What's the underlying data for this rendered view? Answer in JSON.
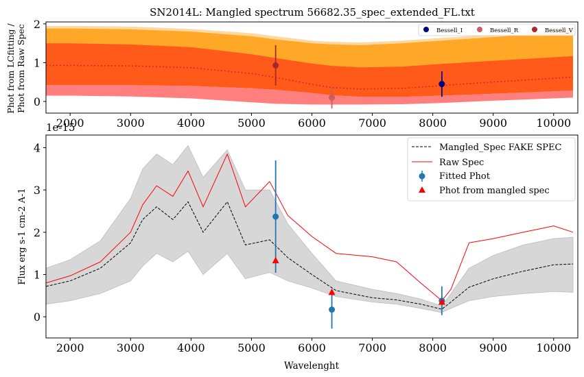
{
  "chart_data": [
    {
      "type": "line",
      "title": "SN2014L: Mangled spectrum 56682.35_spec_extended_FL.txt",
      "ylabel_line1": "Phot from LCfitting /",
      "ylabel_line2": "Phot from Raw Spec",
      "offset_text": "1e-15",
      "xlim": [
        1600,
        10400
      ],
      "ylim": [
        -0.3,
        2.05
      ],
      "x_ticks": [
        2000,
        3000,
        4000,
        5000,
        6000,
        7000,
        8000,
        9000,
        10000
      ],
      "y_ticks": [
        0,
        1,
        2
      ],
      "x": [
        1600,
        2000,
        3000,
        4000,
        5000,
        5400,
        6000,
        6330,
        6800,
        7500,
        8150,
        9000,
        10000,
        10320
      ],
      "ratio_curve": [
        0.93,
        0.93,
        0.92,
        0.87,
        0.72,
        0.62,
        0.44,
        0.36,
        0.32,
        0.34,
        0.41,
        0.5,
        0.6,
        0.63
      ],
      "band_outer_upper": [
        1.95,
        1.95,
        1.93,
        1.87,
        1.76,
        1.68,
        1.57,
        1.54,
        1.52,
        1.57,
        1.64,
        1.73,
        1.83,
        1.85
      ],
      "band_orange_upper": [
        1.88,
        1.88,
        1.86,
        1.8,
        1.68,
        1.6,
        1.5,
        1.47,
        1.45,
        1.5,
        1.57,
        1.66,
        1.77,
        1.78
      ],
      "band_orange_lower": [
        0.15,
        0.15,
        0.13,
        0.08,
        -0.02,
        -0.06,
        -0.08,
        -0.08,
        -0.08,
        -0.07,
        -0.04,
        0.02,
        0.08,
        0.1
      ],
      "band_red_upper": [
        1.5,
        1.5,
        1.47,
        1.4,
        1.22,
        1.12,
        0.98,
        0.92,
        0.88,
        0.9,
        0.97,
        1.05,
        1.14,
        1.17
      ],
      "band_red_lower": [
        0.42,
        0.42,
        0.42,
        0.4,
        0.34,
        0.3,
        0.22,
        0.16,
        0.12,
        0.12,
        0.15,
        0.2,
        0.26,
        0.28
      ],
      "points": [
        {
          "name": "Bessell_I",
          "x": 8150,
          "y": 0.45,
          "yerr": 0.33,
          "color": "#000080"
        },
        {
          "name": "Bessell_R",
          "x": 6330,
          "y": 0.1,
          "yerr": 0.28,
          "color": "#cd5c5c"
        },
        {
          "name": "Bessell_V",
          "x": 5400,
          "y": 0.93,
          "yerr": 0.52,
          "color": "#a52a2a"
        }
      ],
      "legend_position": "upper-right",
      "colors": {
        "ratio_line": "#d62728",
        "outer_band": "#ffd8a0",
        "orange_band": "#ffa726",
        "red_band": "#ff5a1a",
        "lower_band": "#ff7f7f"
      }
    },
    {
      "type": "line",
      "xlabel": "Wavelenght",
      "ylabel": "Flux erg s-1 cm-2 A-1",
      "xlim": [
        1600,
        10400
      ],
      "ylim": [
        -0.5,
        4.3
      ],
      "x_ticks": [
        2000,
        3000,
        4000,
        5000,
        6000,
        7000,
        8000,
        9000,
        10000
      ],
      "y_ticks": [
        0,
        1,
        2,
        3,
        4
      ],
      "x": [
        1600,
        2000,
        2500,
        3000,
        3200,
        3430,
        3700,
        3950,
        4200,
        4600,
        4900,
        5300,
        5600,
        6000,
        6400,
        7000,
        7400,
        7800,
        8150,
        8300,
        8600,
        9000,
        9500,
        10000,
        10320
      ],
      "raw_spec": [
        0.8,
        0.97,
        1.3,
        2.0,
        2.65,
        3.1,
        2.85,
        3.45,
        2.6,
        3.85,
        2.6,
        3.2,
        2.4,
        1.9,
        1.5,
        1.42,
        1.3,
        0.8,
        0.38,
        0.65,
        1.75,
        1.85,
        2.0,
        2.15,
        2.0
      ],
      "mangled_spec": [
        0.72,
        0.85,
        1.15,
        1.75,
        2.3,
        2.6,
        2.3,
        2.72,
        2.0,
        2.72,
        1.7,
        1.82,
        1.4,
        1.0,
        0.62,
        0.45,
        0.4,
        0.3,
        0.18,
        0.35,
        0.7,
        0.9,
        1.08,
        1.23,
        1.25
      ],
      "band_upper": [
        1.15,
        1.35,
        1.8,
        2.8,
        3.5,
        3.85,
        3.6,
        4.05,
        3.3,
        3.95,
        3.0,
        3.0,
        2.2,
        1.5,
        0.85,
        0.65,
        0.55,
        0.42,
        0.26,
        0.55,
        1.15,
        1.45,
        1.7,
        1.85,
        1.88
      ],
      "band_lower": [
        0.3,
        0.38,
        0.55,
        0.85,
        1.2,
        1.5,
        1.3,
        1.55,
        1.0,
        1.5,
        0.9,
        1.05,
        0.85,
        0.68,
        0.48,
        0.35,
        0.3,
        0.2,
        0.1,
        0.2,
        0.38,
        0.48,
        0.55,
        0.6,
        0.58
      ],
      "fitted_phot": [
        {
          "x": 5400,
          "y": 2.37,
          "yerr": 1.33
        },
        {
          "x": 6330,
          "y": 0.17,
          "yerr": 0.45
        },
        {
          "x": 8150,
          "y": 0.38,
          "yerr": 0.34
        }
      ],
      "phot_from_mangled_spec": [
        {
          "x": 5400,
          "y": 1.33
        },
        {
          "x": 6330,
          "y": 0.58
        },
        {
          "x": 8150,
          "y": 0.35
        }
      ],
      "legend": [
        "Mangled_Spec FAKE SPEC",
        "Raw Spec",
        "Fitted Phot",
        "Phot from mangled spec"
      ],
      "legend_position": "upper-right",
      "colors": {
        "raw": "#ff0000",
        "mangled": "#000000",
        "band": "#d3d3d3",
        "fitted": "#1f77b4",
        "mangled_phot": "#ff0000"
      }
    }
  ]
}
